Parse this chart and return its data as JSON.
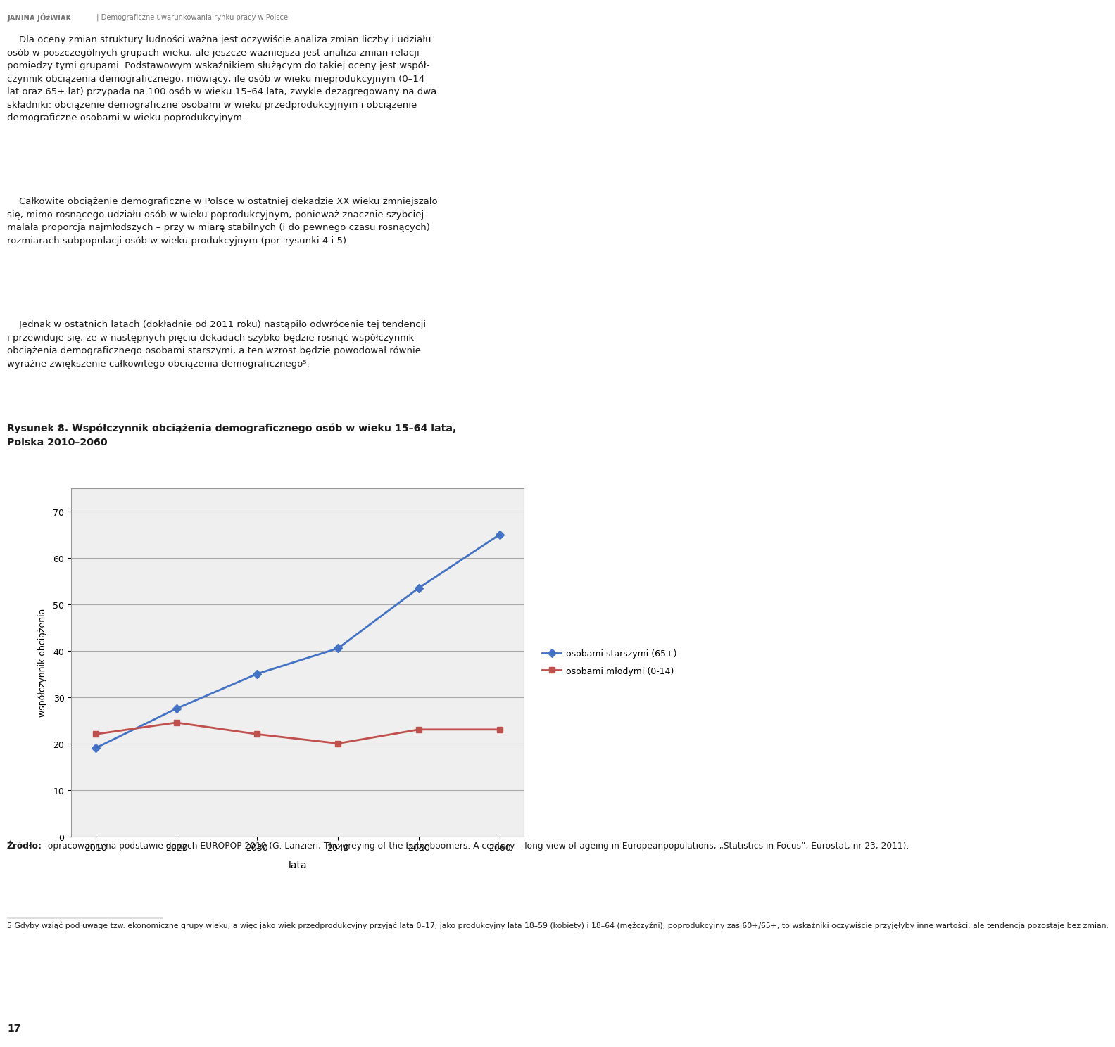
{
  "page_title_bold": "JANINA JÓźWIAK",
  "page_title_rest": " | Demograficzne uwarunkowania rynku pracy w Polsce",
  "para1a": "    Dla oceny zmian struktury ludności ważna jest oczywiście analiza zmian liczby i udziału osób w poszczególnych grupach wieku, ale jeszcze ważniejsza jest analiza zmian relacji pomiędzy tymi grupami. Podstawowym wskaźnikiem służącym do takiej oceny jest współ-",
  "para1b": "czynnik obciążenia demograficznego",
  "para1c": ", mówiący, ile osób w wieku nieprodukcyjnym (0–14 lat oraz 65+ lat) przypada na 100 osób w wieku 15–64 lata, zwykle dezagregowany na dwa składniki: obciążenie demograficzne osobami w wieku przedprodukcyjnym i obciążenie demograficzne osobami w wieku poprodukcyjnym.",
  "para2": "    Całkowite obciążenie demograficzne w Polsce w ostatniej dekadzie XX wieku zmniejszało się, mimo rosnącego udziału osób w wieku poprodukcyjnym, ponieważ znacznie szybciej malała proporcja najmłodszych – przy w miarę stabilnych (i do pewnego czasu rosnących) rozmiarach subpopulacji osób w wieku produkcyjnym (por. rysunki 4 i 5).",
  "para3": "    Jednak w ostatnich latach (dokładnie od 2011 roku) nastąpiło odwrócenie tej tendencji i przewiduje się, że w następnych pięciu dekadach szybko będzie rosnąć współczynnik obciążenia demograficznego osobami starszymi, a ten wzrost będzie powodował równie wyraźne zwiększenie całkowitego obciążenia demograficznego⁵.",
  "figure_title": "Rysunek 8. Współczynnik obciążenia demograficznego osób w wieku 15–64 lata,\nPolska 2010–2060",
  "x_values": [
    2010,
    2020,
    2030,
    2040,
    2050,
    2060
  ],
  "series_elderly": [
    19,
    27.5,
    35,
    40.5,
    53.5,
    65
  ],
  "series_young": [
    22,
    24.5,
    22,
    20,
    23,
    23
  ],
  "x_label": "lata",
  "y_label": "współczynnik obciążenia",
  "y_ticks": [
    0,
    10,
    20,
    30,
    40,
    50,
    60,
    70
  ],
  "legend_elderly": "osobami starszymi (65+)",
  "legend_young": "osobami młodymi (0-14)",
  "color_elderly": "#4472C4",
  "color_young": "#C0504D",
  "source_bold": "Źródło:",
  "source_rest": " opracowanie na podstawie danych EUROPOP 2010 (G. Lanzieri, The greying of the baby boomers. A century – long view of ageing in Europeanpopulations, „Statistics in Focus”, Eurostat, nr 23, 2011).",
  "footnote": "5 Gdyby wziąć pod uwagę tzw. ekonomiczne grupy wieku, a więc jako wiek przedprodukcyjny przyjąć lata 0–17, jako produkcyjny lata 18–59 (kobiety) i 18–64 (męžczyźni), poprodukcyjny zaś 60+/65+, to wskaźniki oczywiście przyjęłyby inne wartości, ale tendencja pozostaje bez zmian.",
  "page_number": "17",
  "bg_color": "#ffffff",
  "chart_inner_bg": "#efefef",
  "grid_color": "#aaaaaa",
  "text_color": "#1a1a1a",
  "header_color": "#777777"
}
